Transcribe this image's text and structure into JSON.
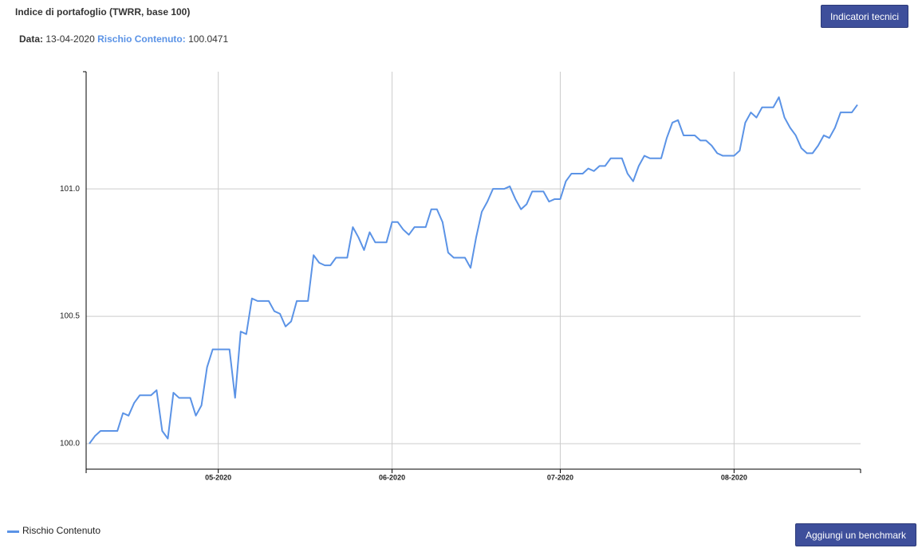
{
  "header": {
    "title": "Indice di portafoglio (TWRR, base 100)",
    "date_label": "Data:",
    "date": "13-04-2020",
    "series_label": "Rischio Contenuto:",
    "series_value": "100.0471"
  },
  "buttons": {
    "technical": "Indicatori tecnici",
    "benchmark": "Aggiungi un benchmark"
  },
  "chart_data": {
    "type": "line",
    "categories": [
      null,
      null,
      null,
      null,
      null,
      null,
      null,
      null,
      null,
      null,
      null,
      null,
      null,
      null,
      null,
      null,
      null,
      null,
      null,
      null,
      null,
      null,
      null,
      "05-2020",
      null,
      null,
      null,
      null,
      null,
      null,
      null,
      null,
      null,
      null,
      null,
      null,
      null,
      null,
      null,
      null,
      null,
      null,
      null,
      null,
      null,
      null,
      null,
      null,
      null,
      null,
      null,
      null,
      null,
      null,
      "06-2020",
      null,
      null,
      null,
      null,
      null,
      null,
      null,
      null,
      null,
      null,
      null,
      null,
      null,
      null,
      null,
      null,
      null,
      null,
      null,
      null,
      null,
      null,
      null,
      null,
      null,
      null,
      null,
      null,
      null,
      "07-2020",
      null,
      null,
      null,
      null,
      null,
      null,
      null,
      null,
      null,
      null,
      null,
      null,
      null,
      null,
      null,
      null,
      null,
      null,
      null,
      null,
      null,
      null,
      null,
      null,
      null,
      null,
      null,
      null,
      null,
      null,
      "08-2020",
      null,
      null,
      null,
      null,
      null,
      null,
      null,
      null,
      null,
      null,
      null,
      null,
      null,
      null,
      null,
      null,
      null,
      null,
      null,
      null,
      null,
      null
    ],
    "series": [
      {
        "name": "Rischio Contenuto",
        "color": "#5b93e6",
        "values": [
          100.0,
          100.03,
          100.05,
          100.05,
          100.05,
          100.05,
          100.12,
          100.11,
          100.16,
          100.19,
          100.19,
          100.19,
          100.21,
          100.05,
          100.02,
          100.2,
          100.18,
          100.18,
          100.18,
          100.11,
          100.15,
          100.3,
          100.37,
          100.37,
          100.37,
          100.37,
          100.18,
          100.44,
          100.43,
          100.57,
          100.56,
          100.56,
          100.56,
          100.52,
          100.51,
          100.46,
          100.48,
          100.56,
          100.56,
          100.56,
          100.74,
          100.71,
          100.7,
          100.7,
          100.73,
          100.73,
          100.73,
          100.85,
          100.81,
          100.76,
          100.83,
          100.79,
          100.79,
          100.79,
          100.87,
          100.87,
          100.84,
          100.82,
          100.85,
          100.85,
          100.85,
          100.92,
          100.92,
          100.87,
          100.75,
          100.73,
          100.73,
          100.73,
          100.69,
          100.81,
          100.91,
          100.95,
          101.0,
          101.0,
          101.0,
          101.01,
          100.96,
          100.92,
          100.94,
          100.99,
          100.99,
          100.99,
          100.95,
          100.96,
          100.96,
          101.03,
          101.06,
          101.06,
          101.06,
          101.08,
          101.07,
          101.09,
          101.09,
          101.12,
          101.12,
          101.12,
          101.06,
          101.03,
          101.09,
          101.13,
          101.12,
          101.12,
          101.12,
          101.2,
          101.26,
          101.27,
          101.21,
          101.21,
          101.21,
          101.19,
          101.19,
          101.17,
          101.14,
          101.13,
          101.13,
          101.13,
          101.15,
          101.26,
          101.3,
          101.28,
          101.32,
          101.32,
          101.32,
          101.36,
          101.28,
          101.24,
          101.21,
          101.16,
          101.14,
          101.14,
          101.17,
          101.21,
          101.2,
          101.24,
          101.3,
          101.3,
          101.3,
          101.33
        ]
      }
    ],
    "ylim": [
      99.9,
      101.46
    ],
    "yticks": [
      {
        "value": 100,
        "label": "100.0"
      },
      100.5,
      {
        "value": 101,
        "label": "101.0"
      }
    ],
    "grid": true
  }
}
